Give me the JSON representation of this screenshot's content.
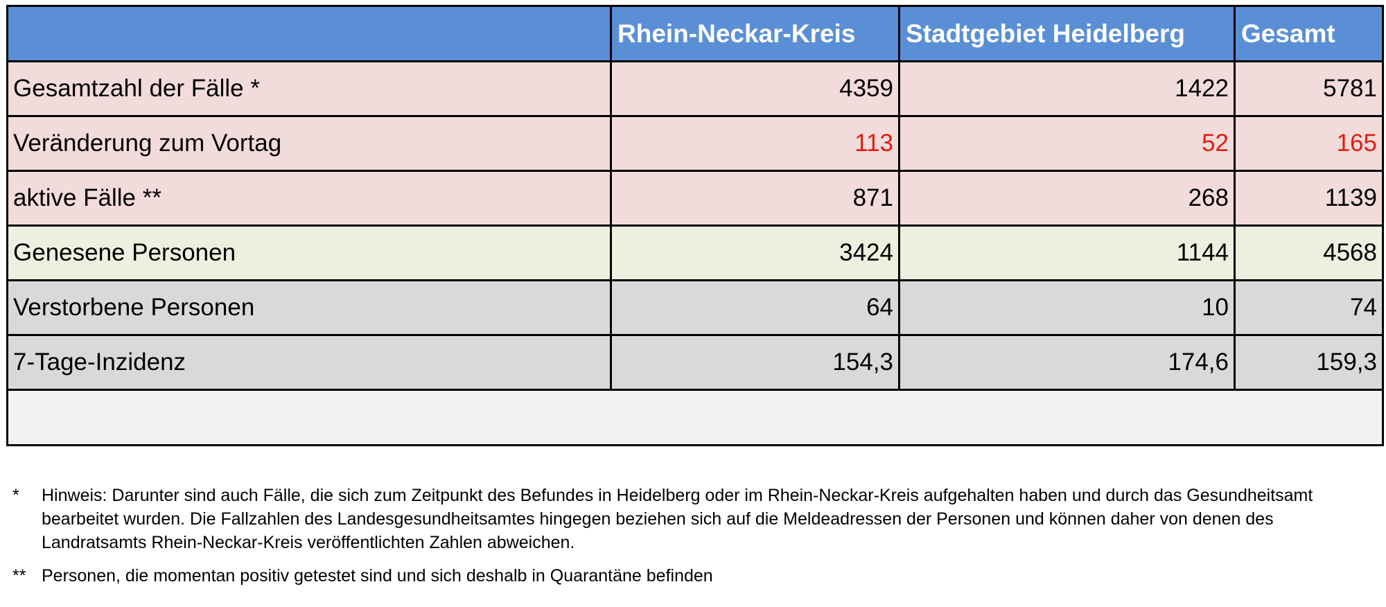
{
  "table": {
    "headers": [
      "",
      "Rhein-Neckar-Kreis",
      "Stadtgebiet Heidelberg",
      "Gesamt"
    ],
    "rows": [
      {
        "label": "Gesamtzahl der Fälle *",
        "values": [
          "4359",
          "1422",
          "5781"
        ]
      },
      {
        "label": "Veränderung zum Vortag",
        "values": [
          "113",
          "52",
          "165"
        ]
      },
      {
        "label": "aktive Fälle **",
        "values": [
          "871",
          "268",
          "1139"
        ]
      },
      {
        "label": "Genesene Personen",
        "values": [
          "3424",
          "1144",
          "4568"
        ]
      },
      {
        "label": "Verstorbene Personen",
        "values": [
          "64",
          "10",
          "74"
        ]
      },
      {
        "label": "7-Tage-Inzidenz",
        "values": [
          "154,3",
          "174,6",
          "159,3"
        ]
      }
    ]
  },
  "colors": {
    "header_bg": "#5a8fd6",
    "header_text": "#ffffff",
    "cases_bg": "#f2dcdb",
    "recovered_bg": "#ebf1de",
    "deceased_bg": "#d9d9d9",
    "change_text": "#e41b13"
  },
  "footnotes": [
    {
      "marker": "*",
      "text": "Hinweis: Darunter sind auch Fälle, die sich zum Zeitpunkt des Befundes in Heidelberg oder im Rhein-Neckar-Kreis aufgehalten haben und durch das Gesundheitsamt bearbeitet wurden. Die Fallzahlen des Landesgesundheitsamtes hingegen beziehen sich auf die Meldeadressen der Personen und können daher von denen des Landratsamts Rhein-Neckar-Kreis veröffentlichten Zahlen abweichen."
    },
    {
      "marker": "**",
      "text": "Personen, die momentan positiv getestet sind und sich deshalb in Quarantäne befinden"
    }
  ]
}
